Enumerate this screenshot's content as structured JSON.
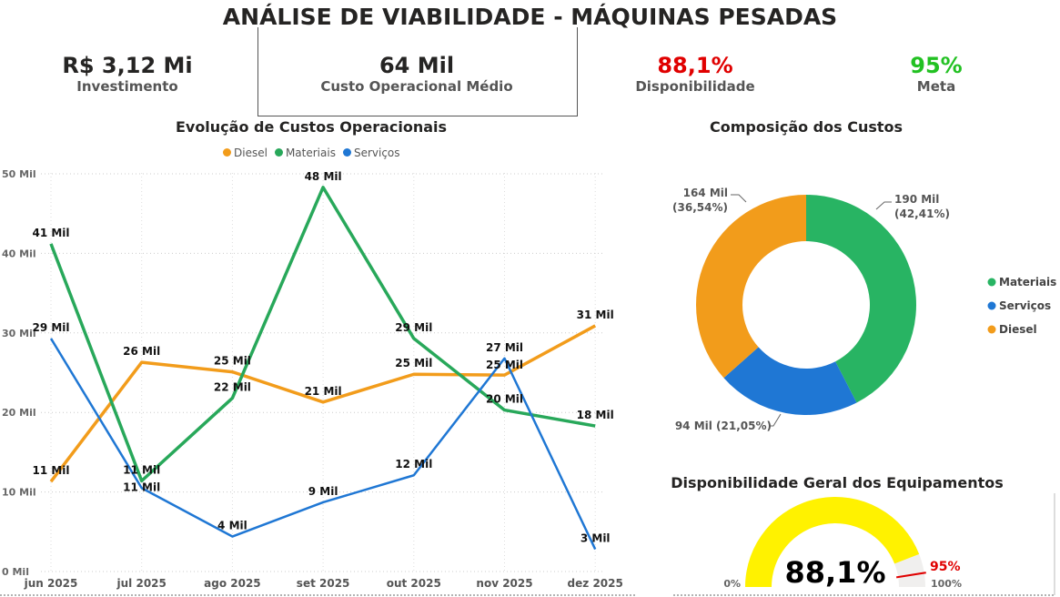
{
  "title": "ANÁLISE DE VIABILIDADE - MÁQUINAS PESADAS",
  "kpis": [
    {
      "value": "R$ 3,12 Mi",
      "label": "Investimento",
      "color": "#252423"
    },
    {
      "value": "64 Mil",
      "label": "Custo Operacional Médio",
      "color": "#252423"
    },
    {
      "value": "88,1%",
      "label": "Disponibilidade",
      "color": "#e00000"
    },
    {
      "value": "95%",
      "label": "Meta",
      "color": "#22c122"
    }
  ],
  "chart_data": [
    {
      "type": "line",
      "title": "Evolução de Custos Operacionais",
      "legend_position": "top",
      "grid": true,
      "categories": [
        "jun 2025",
        "jul 2025",
        "ago 2025",
        "set 2025",
        "out 2025",
        "nov 2025",
        "dez 2025"
      ],
      "yticks": [
        "0 Mil",
        "10 Mil",
        "20 Mil",
        "30 Mil",
        "40 Mil",
        "50 Mil"
      ],
      "ylim": [
        0,
        50
      ],
      "unit": "Mil",
      "series": [
        {
          "name": "Diesel",
          "color": "#f29c1b",
          "values": [
            11.3,
            26.3,
            25.1,
            21.3,
            24.8,
            24.7,
            30.9
          ],
          "labels": [
            "11 Mil",
            "26 Mil",
            "25 Mil",
            "21 Mil",
            "25 Mil",
            "25 Mil",
            "31 Mil"
          ]
        },
        {
          "name": "Materiais",
          "color": "#28a85a",
          "values": [
            41.2,
            11.4,
            21.8,
            48.3,
            29.3,
            20.3,
            18.3
          ],
          "labels": [
            "41 Mil",
            "11 Mil",
            "22 Mil",
            "48 Mil",
            "29 Mil",
            "20 Mil",
            "18 Mil"
          ]
        },
        {
          "name": "Serviços",
          "color": "#1f77d4",
          "values": [
            29.3,
            10.5,
            4.4,
            8.7,
            12.1,
            26.8,
            2.8
          ],
          "labels": [
            "29 Mil",
            "11 Mil",
            "4 Mil",
            "9 Mil",
            "12 Mil",
            "27 Mil",
            "3 Mil"
          ]
        }
      ]
    },
    {
      "type": "pie",
      "title": "Composição dos Custos",
      "legend_position": "right",
      "slices": [
        {
          "name": "Materiais",
          "value": 190,
          "percent": 42.41,
          "label": "190 Mil",
          "pct_label": "(42,41%)",
          "color": "#28b463"
        },
        {
          "name": "Serviços",
          "value": 94,
          "percent": 21.05,
          "label": "94 Mil (21,05%)",
          "color": "#1f77d4"
        },
        {
          "name": "Diesel",
          "value": 164,
          "percent": 36.54,
          "label": "164 Mil",
          "pct_label": "(36,54%)",
          "color": "#f29c1b"
        }
      ]
    }
  ],
  "gauge": {
    "title": "Disponibilidade Geral dos Equipamentos",
    "value": 88.1,
    "value_label": "88,1%",
    "target": 95,
    "target_label": "95%",
    "min_label": "0%",
    "max_label": "100%",
    "min": 0,
    "max": 100,
    "fill_color": "#fff200",
    "track_color": "#f0efee",
    "target_color": "#e00000"
  }
}
